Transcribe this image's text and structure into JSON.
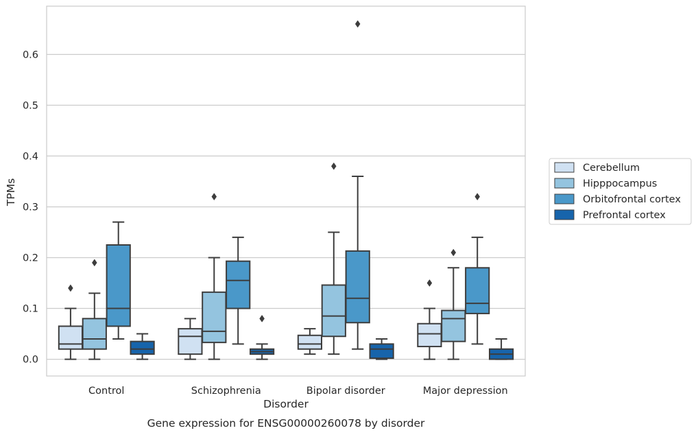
{
  "chart_data": {
    "type": "box",
    "caption": "Gene expression for ENSG00000260078 by disorder",
    "xlabel": "Disorder",
    "ylabel": "TPMs",
    "ylim": [
      -0.033,
      0.695
    ],
    "yticks": [
      "0.0",
      "0.1",
      "0.2",
      "0.3",
      "0.4",
      "0.5",
      "0.6"
    ],
    "grid": "horizontal",
    "legend_position": "right",
    "categories": [
      "Control",
      "Schizophrenia",
      "Bipolar disorder",
      "Major depression"
    ],
    "series": [
      {
        "name": "Cerebellum",
        "color": "#d0e1f2",
        "boxes": [
          {
            "whisker_low": 0.0,
            "q1": 0.02,
            "median": 0.03,
            "q3": 0.065,
            "whisker_high": 0.1,
            "outliers": [
              0.14
            ]
          },
          {
            "whisker_low": 0.0,
            "q1": 0.01,
            "median": 0.045,
            "q3": 0.06,
            "whisker_high": 0.08,
            "outliers": []
          },
          {
            "whisker_low": 0.01,
            "q1": 0.02,
            "median": 0.03,
            "q3": 0.047,
            "whisker_high": 0.06,
            "outliers": []
          },
          {
            "whisker_low": 0.0,
            "q1": 0.025,
            "median": 0.05,
            "q3": 0.07,
            "whisker_high": 0.1,
            "outliers": [
              0.15
            ]
          }
        ]
      },
      {
        "name": "Hipppocampus",
        "color": "#94c4df",
        "boxes": [
          {
            "whisker_low": 0.0,
            "q1": 0.02,
            "median": 0.04,
            "q3": 0.08,
            "whisker_high": 0.13,
            "outliers": [
              0.19
            ]
          },
          {
            "whisker_low": 0.0,
            "q1": 0.033,
            "median": 0.055,
            "q3": 0.132,
            "whisker_high": 0.2,
            "outliers": [
              0.32
            ]
          },
          {
            "whisker_low": 0.01,
            "q1": 0.045,
            "median": 0.085,
            "q3": 0.146,
            "whisker_high": 0.25,
            "outliers": [
              0.38
            ]
          },
          {
            "whisker_low": 0.0,
            "q1": 0.035,
            "median": 0.08,
            "q3": 0.096,
            "whisker_high": 0.18,
            "outliers": [
              0.21
            ]
          }
        ]
      },
      {
        "name": "Orbitofrontal cortex",
        "color": "#4a98c9",
        "boxes": [
          {
            "whisker_low": 0.04,
            "q1": 0.065,
            "median": 0.1,
            "q3": 0.225,
            "whisker_high": 0.27,
            "outliers": []
          },
          {
            "whisker_low": 0.03,
            "q1": 0.1,
            "median": 0.155,
            "q3": 0.193,
            "whisker_high": 0.24,
            "outliers": []
          },
          {
            "whisker_low": 0.02,
            "q1": 0.072,
            "median": 0.12,
            "q3": 0.213,
            "whisker_high": 0.36,
            "outliers": [
              0.66
            ]
          },
          {
            "whisker_low": 0.03,
            "q1": 0.09,
            "median": 0.11,
            "q3": 0.18,
            "whisker_high": 0.24,
            "outliers": [
              0.32
            ]
          }
        ]
      },
      {
        "name": "Prefrontal cortex",
        "color": "#1764ab",
        "boxes": [
          {
            "whisker_low": 0.0,
            "q1": 0.01,
            "median": 0.02,
            "q3": 0.035,
            "whisker_high": 0.05,
            "outliers": []
          },
          {
            "whisker_low": 0.0,
            "q1": 0.01,
            "median": 0.015,
            "q3": 0.02,
            "whisker_high": 0.03,
            "outliers": [
              0.08
            ]
          },
          {
            "whisker_low": 0.0,
            "q1": 0.002,
            "median": 0.02,
            "q3": 0.03,
            "whisker_high": 0.04,
            "outliers": []
          },
          {
            "whisker_low": 0.0,
            "q1": 0.0,
            "median": 0.01,
            "q3": 0.02,
            "whisker_high": 0.04,
            "outliers": []
          }
        ]
      }
    ]
  }
}
